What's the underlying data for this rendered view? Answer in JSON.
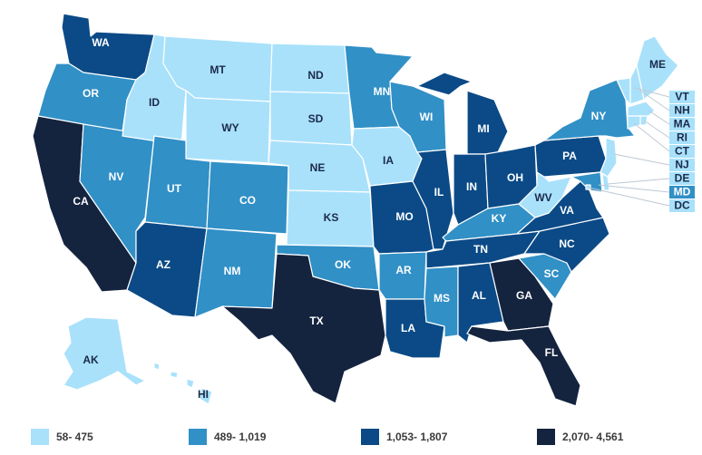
{
  "colors": {
    "class1": "#a9e1fb",
    "class2": "#3190c6",
    "class3": "#0b4a86",
    "class4": "#14233e"
  },
  "legend": [
    {
      "label": "58- 475",
      "class": "class1"
    },
    {
      "label": "489- 1,019",
      "class": "class2"
    },
    {
      "label": "1,053- 1,807",
      "class": "class3"
    },
    {
      "label": "2,070- 4,561",
      "class": "class4"
    }
  ],
  "states": {
    "WA": "class3",
    "OR": "class2",
    "CA": "class4",
    "NV": "class2",
    "ID": "class1",
    "MT": "class1",
    "WY": "class1",
    "UT": "class2",
    "AZ": "class3",
    "CO": "class2",
    "NM": "class2",
    "ND": "class1",
    "SD": "class1",
    "NE": "class1",
    "KS": "class1",
    "OK": "class2",
    "TX": "class4",
    "MN": "class2",
    "IA": "class1",
    "MO": "class3",
    "AR": "class2",
    "LA": "class3",
    "WI": "class2",
    "IL": "class3",
    "MI": "class3",
    "IN": "class3",
    "OH": "class3",
    "KY": "class2",
    "TN": "class3",
    "MS": "class2",
    "AL": "class3",
    "GA": "class4",
    "FL": "class4",
    "SC": "class2",
    "NC": "class3",
    "VA": "class3",
    "WV": "class1",
    "PA": "class3",
    "NY": "class2",
    "ME": "class1",
    "VT": "class1",
    "NH": "class1",
    "MA": "class1",
    "RI": "class1",
    "CT": "class1",
    "NJ": "class1",
    "DE": "class1",
    "MD": "class2",
    "DC": "class1",
    "AK": "class1",
    "HI": "class1"
  }
}
